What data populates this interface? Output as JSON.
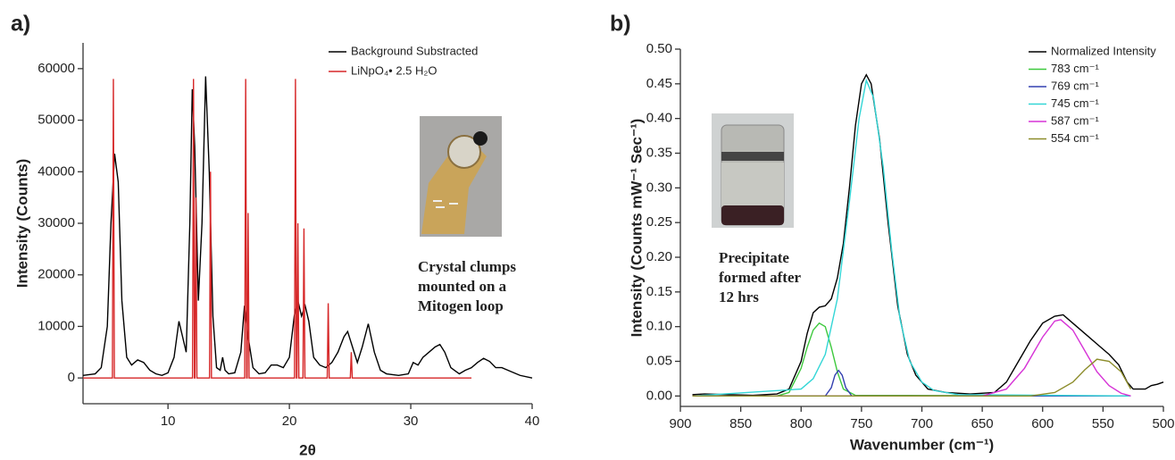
{
  "chart_data": [
    {
      "type": "line",
      "panel_label": "a)",
      "x_label": "2θ",
      "y_label": "Intensity (Counts)",
      "xlim": [
        3,
        40
      ],
      "ylim": [
        -5000,
        65000
      ],
      "xticks": [
        10,
        20,
        30,
        40
      ],
      "yticks": [
        0,
        10000,
        20000,
        30000,
        40000,
        50000,
        60000
      ],
      "legend": "upper right",
      "annotation": [
        "Crystal clumps",
        "mounted on a",
        "Mitogen loop"
      ],
      "series": [
        {
          "name": "Background Substracted",
          "color": "#000000",
          "x": [
            3,
            4,
            4.5,
            5,
            5.3,
            5.6,
            5.9,
            6.2,
            6.6,
            7,
            7.5,
            8,
            8.5,
            9,
            9.5,
            10,
            10.5,
            10.9,
            11.2,
            11.5,
            11.8,
            12,
            12.2,
            12.5,
            12.8,
            13.1,
            13.4,
            13.7,
            14,
            14.3,
            14.5,
            14.7,
            15,
            15.5,
            16,
            16.3,
            16.6,
            17,
            17.5,
            18,
            18.5,
            19,
            19.5,
            20,
            20.4,
            20.7,
            21,
            21.3,
            21.6,
            22,
            22.5,
            23,
            23.5,
            24,
            24.5,
            24.8,
            25.2,
            25.6,
            26,
            26.5,
            27,
            27.5,
            28,
            29,
            29.8,
            30.2,
            30.6,
            31,
            31.5,
            32,
            32.4,
            32.8,
            33.3,
            34,
            34.5,
            35,
            35.5,
            36,
            36.5,
            37,
            37.5,
            38,
            38.5,
            39,
            40
          ],
          "values": [
            500,
            800,
            2000,
            10000,
            30000,
            43500,
            38000,
            15000,
            4000,
            2500,
            3500,
            3000,
            1500,
            800,
            500,
            1000,
            4000,
            11000,
            8000,
            5000,
            30000,
            56000,
            45000,
            15000,
            30000,
            58500,
            40000,
            12000,
            2000,
            1500,
            4000,
            1500,
            800,
            1000,
            5000,
            14000,
            8000,
            2000,
            800,
            1000,
            2500,
            2500,
            2000,
            4000,
            12000,
            15000,
            12000,
            14000,
            11000,
            4000,
            2500,
            2000,
            3000,
            5000,
            8000,
            9000,
            6000,
            3000,
            6000,
            10500,
            5000,
            1500,
            800,
            500,
            800,
            3000,
            2500,
            4000,
            5000,
            6000,
            6500,
            5000,
            2000,
            800,
            1500,
            2000,
            3000,
            3800,
            3200,
            2000,
            2000,
            1500,
            1000,
            500,
            0
          ]
        },
        {
          "name": "LiNpO₄• 2.5 H₂O",
          "color": "#d62728",
          "x": [
            3,
            5.42,
            5.5,
            5.58,
            12.02,
            12.1,
            12.18,
            12.22,
            12.3,
            12.38,
            13.42,
            13.5,
            13.58,
            16.32,
            16.4,
            16.48,
            16.52,
            16.6,
            16.68,
            20.42,
            20.5,
            20.58,
            20.62,
            20.7,
            20.78,
            21.12,
            21.2,
            21.28,
            23.12,
            23.2,
            23.28,
            25.02,
            25.1,
            25.18,
            35
          ],
          "values": [
            0,
            0,
            58000,
            0,
            0,
            58000,
            0,
            0,
            35000,
            0,
            0,
            40000,
            0,
            0,
            58000,
            0,
            0,
            32000,
            0,
            0,
            58000,
            0,
            0,
            30000,
            0,
            0,
            29000,
            0,
            0,
            14500,
            0,
            0,
            5000,
            0,
            0
          ]
        }
      ]
    },
    {
      "type": "line",
      "panel_label": "b)",
      "x_label": "Wavenumber (cm⁻¹)",
      "y_label": "Intensity (Counts mW⁻¹ Sec⁻¹)",
      "xlim": [
        900,
        500
      ],
      "ylim": [
        -0.015,
        0.5
      ],
      "xticks": [
        900,
        850,
        800,
        750,
        700,
        650,
        600,
        550,
        500
      ],
      "yticks": [
        {
          "value": 0,
          "label": "0.00"
        },
        0.05,
        {
          "value": 0.1,
          "label": "0.10"
        },
        0.15,
        {
          "value": 0.2,
          "label": "0.20"
        },
        0.25,
        {
          "value": 0.3,
          "label": "0.30"
        },
        0.35,
        {
          "value": 0.4,
          "label": "0.40"
        },
        0.45,
        {
          "value": 0.5,
          "label": "0.50"
        }
      ],
      "legend": "upper right",
      "annotation": [
        "Precipitate",
        "formed after",
        "12 hrs"
      ],
      "series": [
        {
          "name": "Normalized Intensity",
          "color": "#000000",
          "x": [
            890,
            880,
            860,
            840,
            820,
            810,
            800,
            795,
            790,
            785,
            780,
            775,
            770,
            765,
            760,
            755,
            750,
            746,
            742,
            735,
            728,
            720,
            712,
            705,
            695,
            680,
            660,
            640,
            630,
            620,
            610,
            600,
            590,
            583,
            575,
            565,
            555,
            545,
            537,
            530,
            525,
            515,
            510,
            505,
            500
          ],
          "values": [
            0.002,
            0.003,
            0.002,
            0.001,
            0.003,
            0.01,
            0.05,
            0.09,
            0.12,
            0.128,
            0.13,
            0.14,
            0.17,
            0.22,
            0.3,
            0.39,
            0.45,
            0.463,
            0.45,
            0.37,
            0.25,
            0.13,
            0.06,
            0.03,
            0.01,
            0.005,
            0.003,
            0.005,
            0.02,
            0.05,
            0.08,
            0.105,
            0.115,
            0.117,
            0.105,
            0.09,
            0.075,
            0.06,
            0.045,
            0.02,
            0.01,
            0.01,
            0.015,
            0.017,
            0.02
          ]
        },
        {
          "name": "783 cm⁻¹",
          "color": "#3ec93e",
          "x": [
            890,
            820,
            810,
            800,
            795,
            790,
            785,
            780,
            775,
            770,
            765,
            755,
            527
          ],
          "values": [
            0,
            0,
            0.005,
            0.04,
            0.07,
            0.095,
            0.105,
            0.1,
            0.07,
            0.035,
            0.01,
            0.001,
            0
          ]
        },
        {
          "name": "769 cm⁻¹",
          "color": "#3340b0",
          "x": [
            890,
            780,
            775,
            772,
            769,
            766,
            763,
            758,
            527
          ],
          "values": [
            0,
            0,
            0.012,
            0.03,
            0.037,
            0.03,
            0.012,
            0,
            0
          ]
        },
        {
          "name": "745 cm⁻¹",
          "color": "#33d6d6",
          "x": [
            890,
            800,
            790,
            780,
            770,
            760,
            752,
            746,
            740,
            732,
            725,
            718,
            710,
            700,
            690,
            670,
            527
          ],
          "values": [
            0,
            0.01,
            0.025,
            0.06,
            0.14,
            0.28,
            0.4,
            0.455,
            0.43,
            0.33,
            0.21,
            0.11,
            0.05,
            0.02,
            0.008,
            0.002,
            0
          ]
        },
        {
          "name": "587 cm⁻¹",
          "color": "#d633d6",
          "x": [
            890,
            650,
            630,
            615,
            600,
            590,
            585,
            575,
            565,
            555,
            545,
            535,
            527
          ],
          "values": [
            0,
            0,
            0.01,
            0.04,
            0.085,
            0.108,
            0.11,
            0.095,
            0.065,
            0.035,
            0.015,
            0.004,
            0
          ]
        },
        {
          "name": "554 cm⁻¹",
          "color": "#8c8c2a",
          "x": [
            890,
            610,
            590,
            575,
            565,
            555,
            545,
            535,
            527
          ],
          "values": [
            0,
            0,
            0.005,
            0.02,
            0.038,
            0.053,
            0.05,
            0.035,
            0.01
          ]
        }
      ]
    }
  ]
}
